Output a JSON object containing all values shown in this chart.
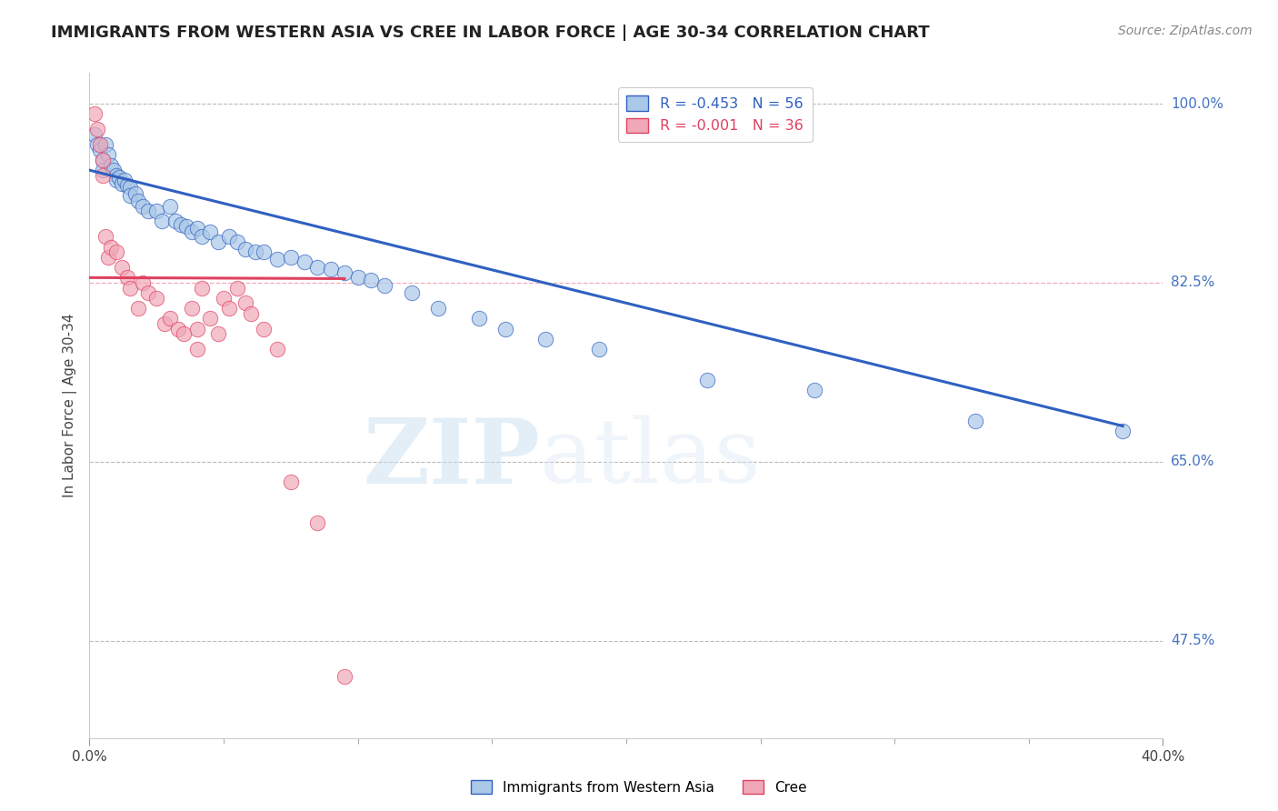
{
  "title": "IMMIGRANTS FROM WESTERN ASIA VS CREE IN LABOR FORCE | AGE 30-34 CORRELATION CHART",
  "source": "Source: ZipAtlas.com",
  "ylabel": "In Labor Force | Age 30-34",
  "xlim": [
    0.0,
    0.4
  ],
  "ylim": [
    0.38,
    1.03
  ],
  "hlines": [
    1.0,
    0.825,
    0.65,
    0.475
  ],
  "hline_labels": [
    "100.0%",
    "82.5%",
    "65.0%",
    "47.5%"
  ],
  "legend_blue_r": "R = -0.453",
  "legend_blue_n": "N = 56",
  "legend_pink_r": "R = -0.001",
  "legend_pink_n": "N = 36",
  "watermark_zip": "ZIP",
  "watermark_atlas": "atlas",
  "blue_color": "#aac8e8",
  "pink_color": "#f0a8b8",
  "trendline_blue": "#3060c0",
  "trendline_pink": "#e04060",
  "blue_scatter_x": [
    0.002,
    0.003,
    0.004,
    0.005,
    0.005,
    0.006,
    0.007,
    0.008,
    0.009,
    0.01,
    0.01,
    0.011,
    0.012,
    0.013,
    0.014,
    0.015,
    0.015,
    0.017,
    0.018,
    0.02,
    0.022,
    0.025,
    0.027,
    0.03,
    0.032,
    0.034,
    0.036,
    0.038,
    0.04,
    0.042,
    0.045,
    0.048,
    0.052,
    0.055,
    0.058,
    0.062,
    0.065,
    0.07,
    0.075,
    0.08,
    0.085,
    0.09,
    0.095,
    0.1,
    0.105,
    0.11,
    0.12,
    0.13,
    0.145,
    0.155,
    0.17,
    0.19,
    0.23,
    0.27,
    0.33,
    0.385
  ],
  "blue_scatter_y": [
    0.97,
    0.96,
    0.955,
    0.945,
    0.935,
    0.96,
    0.95,
    0.94,
    0.935,
    0.93,
    0.925,
    0.928,
    0.922,
    0.925,
    0.92,
    0.918,
    0.91,
    0.912,
    0.905,
    0.9,
    0.895,
    0.895,
    0.885,
    0.9,
    0.885,
    0.882,
    0.88,
    0.875,
    0.878,
    0.87,
    0.875,
    0.865,
    0.87,
    0.865,
    0.858,
    0.855,
    0.855,
    0.848,
    0.85,
    0.845,
    0.84,
    0.838,
    0.835,
    0.83,
    0.828,
    0.822,
    0.815,
    0.8,
    0.79,
    0.78,
    0.77,
    0.76,
    0.73,
    0.72,
    0.69,
    0.68
  ],
  "pink_scatter_x": [
    0.002,
    0.003,
    0.004,
    0.005,
    0.005,
    0.006,
    0.007,
    0.008,
    0.01,
    0.012,
    0.014,
    0.015,
    0.018,
    0.02,
    0.022,
    0.025,
    0.028,
    0.03,
    0.033,
    0.035,
    0.038,
    0.04,
    0.04,
    0.042,
    0.045,
    0.048,
    0.05,
    0.052,
    0.055,
    0.058,
    0.06,
    0.065,
    0.07,
    0.075,
    0.085,
    0.095
  ],
  "pink_scatter_y": [
    0.99,
    0.975,
    0.96,
    0.945,
    0.93,
    0.87,
    0.85,
    0.86,
    0.855,
    0.84,
    0.83,
    0.82,
    0.8,
    0.825,
    0.815,
    0.81,
    0.785,
    0.79,
    0.78,
    0.775,
    0.8,
    0.78,
    0.76,
    0.82,
    0.79,
    0.775,
    0.81,
    0.8,
    0.82,
    0.805,
    0.795,
    0.78,
    0.76,
    0.63,
    0.59,
    0.44
  ],
  "blue_trendline_x0": 0.0,
  "blue_trendline_x1": 0.385,
  "blue_trendline_y0": 0.935,
  "blue_trendline_y1": 0.685,
  "pink_trendline_x0": 0.0,
  "pink_trendline_x1": 0.095,
  "pink_trendline_y0": 0.83,
  "pink_trendline_y1": 0.829
}
